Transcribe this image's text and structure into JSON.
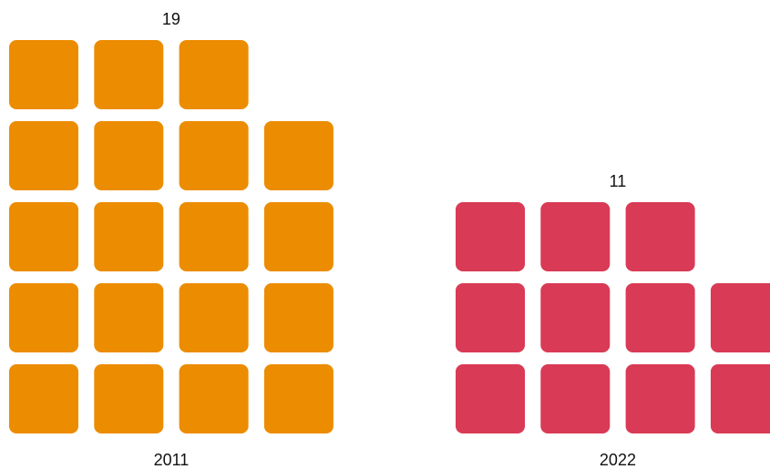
{
  "chart_data": {
    "type": "waffle",
    "categories": [
      "2011",
      "2022"
    ],
    "values": [
      19,
      11
    ],
    "colors": [
      "#ec8c00",
      "#d93a55"
    ]
  }
}
